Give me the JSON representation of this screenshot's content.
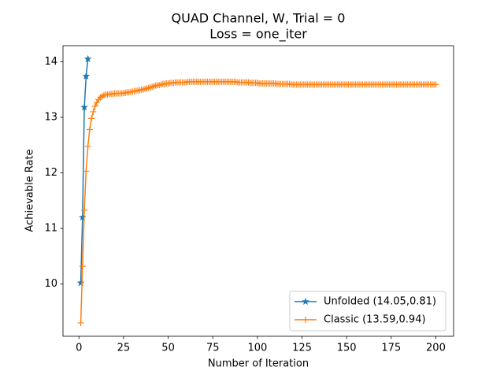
{
  "chart_data": {
    "type": "line",
    "title": "QUAD Channel, W, Trial = 0",
    "subtitle": "Loss = one_iter",
    "x_label": "Number of Iteration",
    "y_label": "Achievable Rate",
    "xlim": [
      -8.95,
      209.95
    ],
    "xticks": [
      0,
      25,
      50,
      75,
      100,
      125,
      150,
      175,
      200
    ],
    "ylim": [
      9.06,
      14.29
    ],
    "yticks": [
      10,
      11,
      12,
      13,
      14
    ],
    "grid": false,
    "legend": "lower right",
    "series": [
      {
        "name": "Unfolded (14.05,0.81)",
        "color": "#1f77b4",
        "marker": "star",
        "x": [
          1,
          2,
          3,
          4,
          5
        ],
        "values": [
          10.02,
          11.2,
          13.18,
          13.74,
          14.05
        ]
      },
      {
        "name": "Classic (13.59,0.94)",
        "color": "#ff7f0e",
        "marker": "plus",
        "x": [
          1,
          2,
          3,
          4,
          5,
          6,
          7,
          8,
          9,
          10,
          11,
          12,
          13,
          14,
          15,
          16,
          17,
          18,
          19,
          20,
          21,
          22,
          23,
          24,
          25,
          26,
          27,
          28,
          29,
          30,
          31,
          32,
          33,
          34,
          35,
          36,
          37,
          38,
          39,
          40,
          41,
          42,
          43,
          44,
          45,
          46,
          47,
          48,
          49,
          50,
          51,
          52,
          53,
          54,
          55,
          56,
          57,
          58,
          59,
          60,
          61,
          62,
          63,
          64,
          65,
          66,
          67,
          68,
          69,
          70,
          71,
          72,
          73,
          74,
          75,
          76,
          77,
          78,
          79,
          80,
          81,
          82,
          83,
          84,
          85,
          86,
          87,
          88,
          89,
          90,
          91,
          92,
          93,
          94,
          95,
          96,
          97,
          98,
          99,
          100,
          101,
          102,
          103,
          104,
          105,
          106,
          107,
          108,
          109,
          110,
          111,
          112,
          113,
          114,
          115,
          116,
          117,
          118,
          119,
          120,
          121,
          122,
          123,
          124,
          125,
          126,
          127,
          128,
          129,
          130,
          131,
          132,
          133,
          134,
          135,
          136,
          137,
          138,
          139,
          140,
          141,
          142,
          143,
          144,
          145,
          146,
          147,
          148,
          149,
          150,
          151,
          152,
          153,
          154,
          155,
          156,
          157,
          158,
          159,
          160,
          161,
          162,
          163,
          164,
          165,
          166,
          167,
          168,
          169,
          170,
          171,
          172,
          173,
          174,
          175,
          176,
          177,
          178,
          179,
          180,
          181,
          182,
          183,
          184,
          185,
          186,
          187,
          188,
          189,
          190,
          191,
          192,
          193,
          194,
          195,
          196,
          197,
          198,
          199,
          200
        ],
        "values": [
          9.3,
          10.32,
          11.33,
          12.03,
          12.48,
          12.78,
          12.98,
          13.1,
          13.2,
          13.27,
          13.32,
          13.36,
          13.38,
          13.4,
          13.41,
          13.41,
          13.42,
          13.42,
          13.42,
          13.43,
          13.43,
          13.43,
          13.43,
          13.43,
          13.44,
          13.44,
          13.45,
          13.45,
          13.46,
          13.46,
          13.47,
          13.48,
          13.48,
          13.49,
          13.5,
          13.5,
          13.51,
          13.52,
          13.53,
          13.54,
          13.55,
          13.56,
          13.57,
          13.58,
          13.58,
          13.59,
          13.6,
          13.6,
          13.61,
          13.61,
          13.62,
          13.62,
          13.62,
          13.63,
          13.63,
          13.63,
          13.63,
          13.63,
          13.63,
          13.63,
          13.64,
          13.64,
          13.64,
          13.64,
          13.64,
          13.64,
          13.64,
          13.64,
          13.64,
          13.64,
          13.64,
          13.64,
          13.64,
          13.64,
          13.64,
          13.64,
          13.64,
          13.64,
          13.64,
          13.64,
          13.64,
          13.64,
          13.64,
          13.64,
          13.64,
          13.64,
          13.64,
          13.64,
          13.63,
          13.63,
          13.63,
          13.63,
          13.63,
          13.63,
          13.63,
          13.62,
          13.62,
          13.62,
          13.62,
          13.62,
          13.61,
          13.61,
          13.61,
          13.61,
          13.61,
          13.61,
          13.61,
          13.61,
          13.61,
          13.61,
          13.6,
          13.6,
          13.6,
          13.6,
          13.6,
          13.6,
          13.6,
          13.6,
          13.59,
          13.59,
          13.59,
          13.59,
          13.59,
          13.59,
          13.59,
          13.59,
          13.59,
          13.59,
          13.59,
          13.59,
          13.59,
          13.59,
          13.59,
          13.59,
          13.59,
          13.59,
          13.59,
          13.59,
          13.59,
          13.59,
          13.59,
          13.59,
          13.59,
          13.59,
          13.59,
          13.59,
          13.59,
          13.59,
          13.59,
          13.59,
          13.59,
          13.59,
          13.59,
          13.59,
          13.59,
          13.59,
          13.59,
          13.59,
          13.59,
          13.59,
          13.59,
          13.59,
          13.59,
          13.59,
          13.59,
          13.59,
          13.59,
          13.59,
          13.59,
          13.59,
          13.59,
          13.59,
          13.59,
          13.59,
          13.59,
          13.59,
          13.59,
          13.59,
          13.59,
          13.59,
          13.59,
          13.59,
          13.59,
          13.59,
          13.59,
          13.59,
          13.59,
          13.59,
          13.59,
          13.59,
          13.59,
          13.59,
          13.59,
          13.59,
          13.59,
          13.59,
          13.59,
          13.59,
          13.59,
          13.59
        ]
      }
    ]
  }
}
